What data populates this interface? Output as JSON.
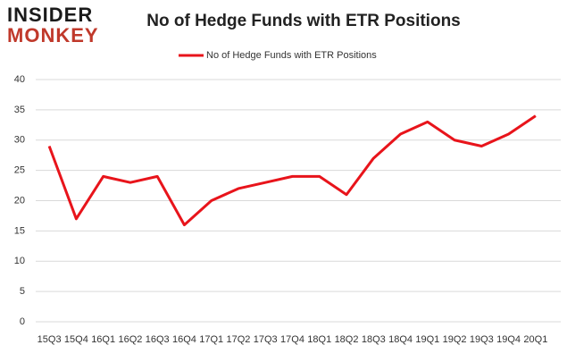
{
  "chart_data": {
    "type": "line",
    "logo_top": "INSIDER",
    "logo_bottom": "MONKEY",
    "title": "No of Hedge Funds with ETR Positions",
    "categories": [
      "15Q3",
      "15Q4",
      "16Q1",
      "16Q2",
      "16Q3",
      "16Q4",
      "17Q1",
      "17Q2",
      "17Q3",
      "17Q4",
      "18Q1",
      "18Q2",
      "18Q3",
      "18Q4",
      "19Q1",
      "19Q2",
      "19Q3",
      "19Q4",
      "20Q1"
    ],
    "series": [
      {
        "name": "No of Hedge Funds with ETR Positions",
        "color": "#e8141b",
        "values": [
          29,
          17,
          24,
          23,
          24,
          16,
          20,
          22,
          23,
          24,
          24,
          21,
          27,
          31,
          33,
          30,
          29,
          31,
          34
        ]
      }
    ],
    "ylim": [
      0,
      40
    ],
    "yticks": [
      0,
      5,
      10,
      15,
      20,
      25,
      30,
      35,
      40
    ],
    "grid": true,
    "legend": "top"
  }
}
